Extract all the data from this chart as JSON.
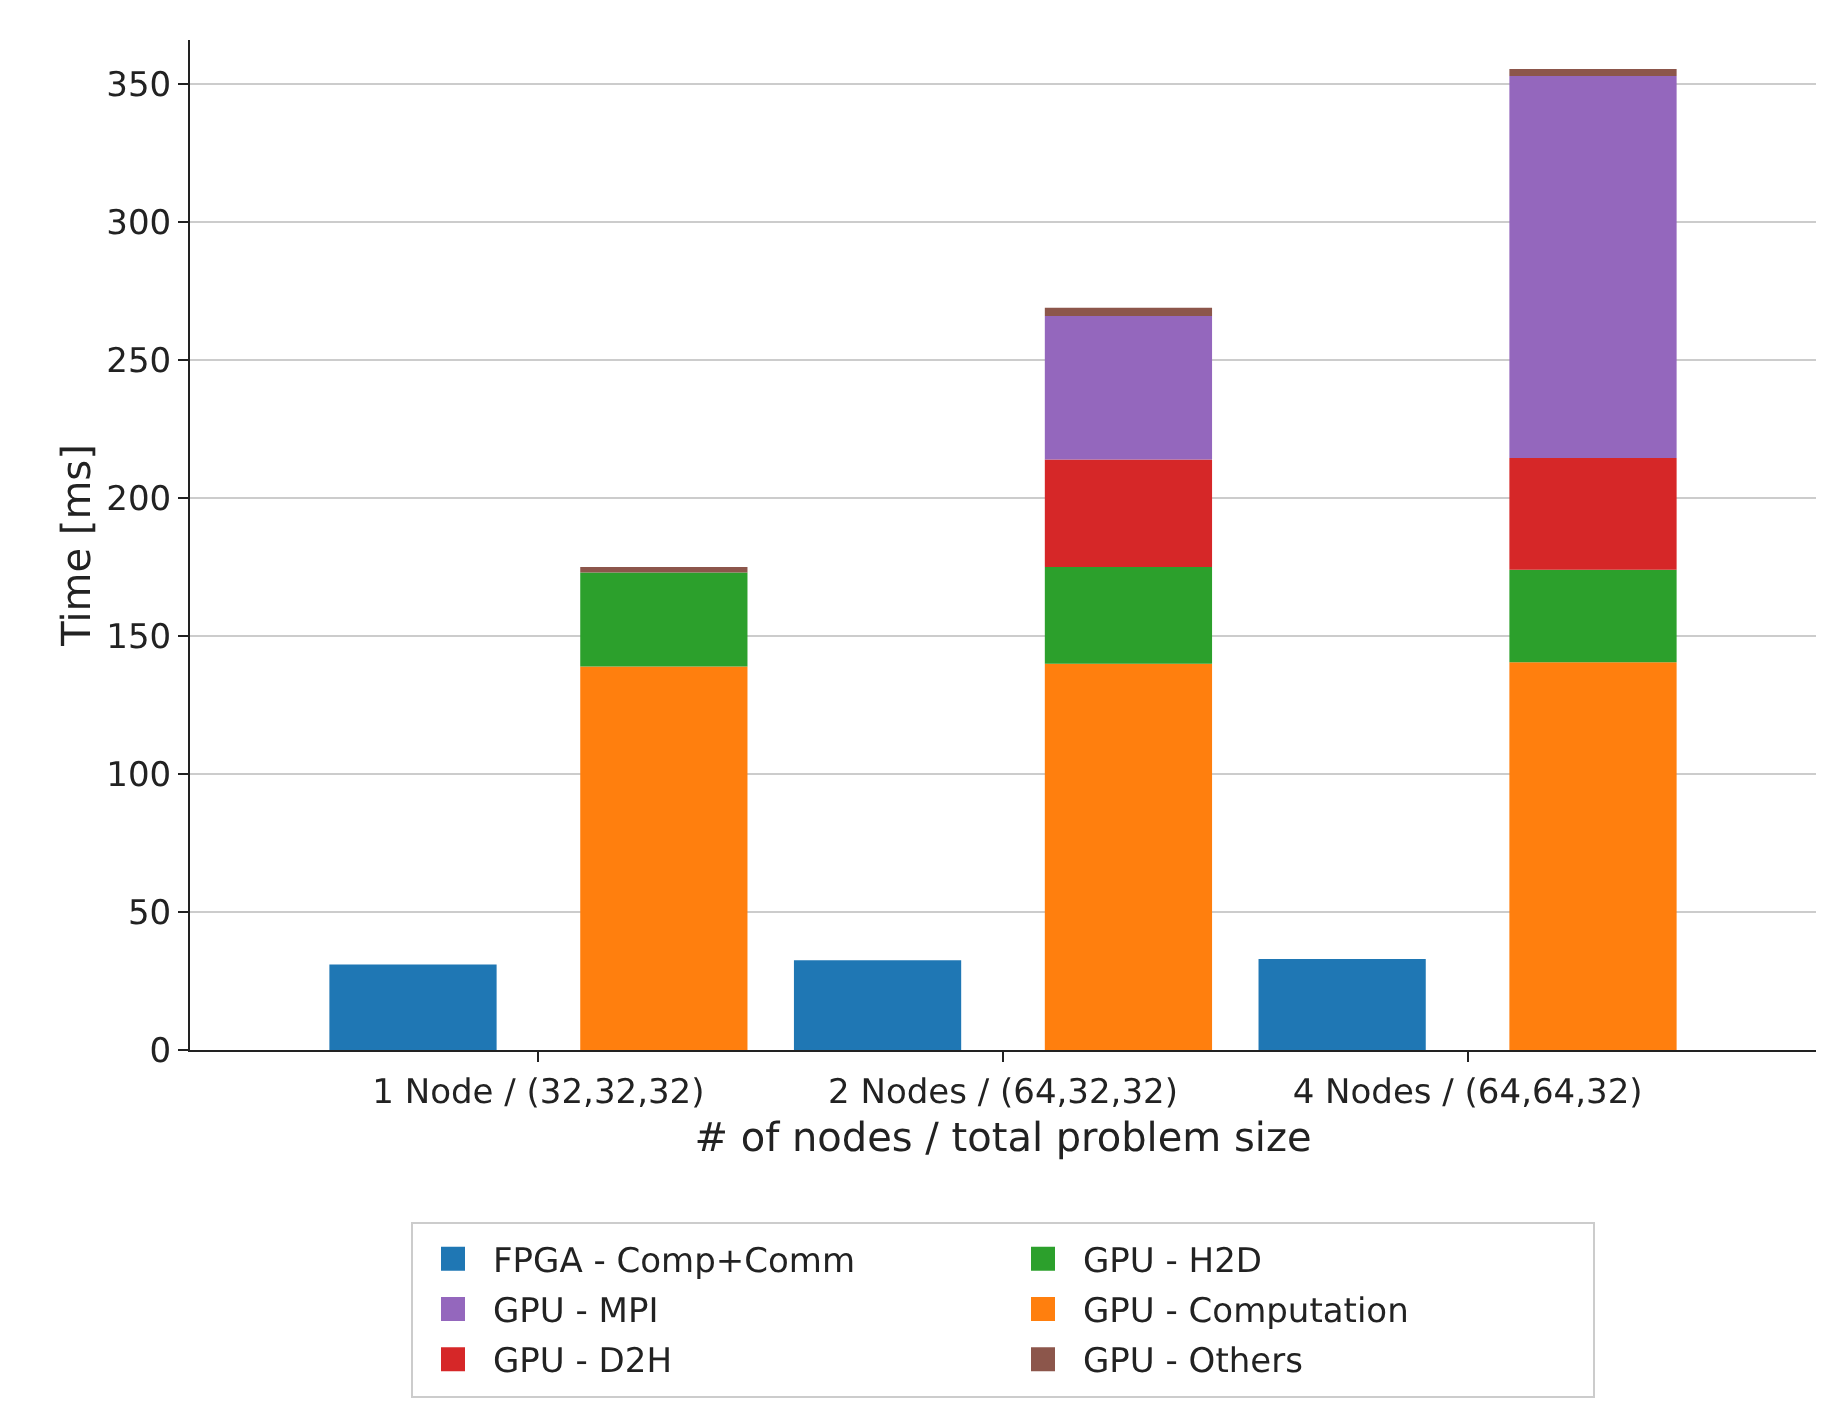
{
  "chart_data": {
    "type": "bar",
    "xlabel": "# of nodes / total problem size",
    "ylabel": "Time [ms]",
    "categories": [
      "1 Node / (32,32,32)",
      "2 Nodes / (64,32,32)",
      "4 Nodes / (64,64,32)"
    ],
    "ylim": [
      0,
      366
    ],
    "yticks": [
      0,
      50,
      100,
      150,
      200,
      250,
      300,
      350
    ],
    "grid": "y",
    "legend": "bottom",
    "series": [
      {
        "name": "FPGA - Comp+Comm",
        "color": "#1f77b4",
        "values": [
          31,
          32.5,
          33
        ]
      },
      {
        "name": "GPU - Computation",
        "color": "#ff7f0e",
        "base": [
          0,
          0,
          0
        ],
        "values": [
          139,
          140,
          140.5
        ]
      },
      {
        "name": "GPU - H2D",
        "color": "#2ca02c",
        "base": [
          139,
          140,
          140.5
        ],
        "values": [
          34,
          35,
          33.5
        ]
      },
      {
        "name": "GPU - D2H",
        "color": "#d62728",
        "base": [
          null,
          175,
          174
        ],
        "values": [
          null,
          39,
          40.5
        ]
      },
      {
        "name": "GPU - MPI",
        "color": "#9467bd",
        "base": [
          null,
          214,
          214.5
        ],
        "values": [
          null,
          52,
          138.5
        ]
      },
      {
        "name": "GPU - Others",
        "color": "#8c564b",
        "base": [
          173,
          266,
          353
        ],
        "values": [
          2,
          3,
          2.5
        ]
      }
    ]
  }
}
